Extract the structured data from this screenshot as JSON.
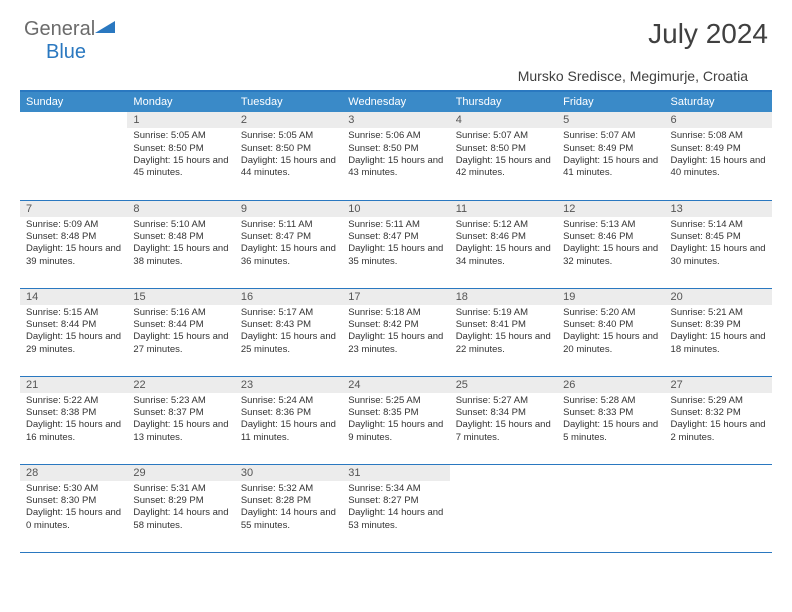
{
  "brand": {
    "part1": "General",
    "part2": "Blue"
  },
  "title": "July 2024",
  "location": "Mursko Sredisce, Megimurje, Croatia",
  "colors": {
    "header_bg": "#3a8ac8",
    "border": "#2a78c0",
    "daynum_bg": "#ececec",
    "text": "#333333"
  },
  "weekdays": [
    "Sunday",
    "Monday",
    "Tuesday",
    "Wednesday",
    "Thursday",
    "Friday",
    "Saturday"
  ],
  "weeks": [
    [
      null,
      {
        "n": "1",
        "sr": "5:05 AM",
        "ss": "8:50 PM",
        "dl": "15 hours and 45 minutes."
      },
      {
        "n": "2",
        "sr": "5:05 AM",
        "ss": "8:50 PM",
        "dl": "15 hours and 44 minutes."
      },
      {
        "n": "3",
        "sr": "5:06 AM",
        "ss": "8:50 PM",
        "dl": "15 hours and 43 minutes."
      },
      {
        "n": "4",
        "sr": "5:07 AM",
        "ss": "8:50 PM",
        "dl": "15 hours and 42 minutes."
      },
      {
        "n": "5",
        "sr": "5:07 AM",
        "ss": "8:49 PM",
        "dl": "15 hours and 41 minutes."
      },
      {
        "n": "6",
        "sr": "5:08 AM",
        "ss": "8:49 PM",
        "dl": "15 hours and 40 minutes."
      }
    ],
    [
      {
        "n": "7",
        "sr": "5:09 AM",
        "ss": "8:48 PM",
        "dl": "15 hours and 39 minutes."
      },
      {
        "n": "8",
        "sr": "5:10 AM",
        "ss": "8:48 PM",
        "dl": "15 hours and 38 minutes."
      },
      {
        "n": "9",
        "sr": "5:11 AM",
        "ss": "8:47 PM",
        "dl": "15 hours and 36 minutes."
      },
      {
        "n": "10",
        "sr": "5:11 AM",
        "ss": "8:47 PM",
        "dl": "15 hours and 35 minutes."
      },
      {
        "n": "11",
        "sr": "5:12 AM",
        "ss": "8:46 PM",
        "dl": "15 hours and 34 minutes."
      },
      {
        "n": "12",
        "sr": "5:13 AM",
        "ss": "8:46 PM",
        "dl": "15 hours and 32 minutes."
      },
      {
        "n": "13",
        "sr": "5:14 AM",
        "ss": "8:45 PM",
        "dl": "15 hours and 30 minutes."
      }
    ],
    [
      {
        "n": "14",
        "sr": "5:15 AM",
        "ss": "8:44 PM",
        "dl": "15 hours and 29 minutes."
      },
      {
        "n": "15",
        "sr": "5:16 AM",
        "ss": "8:44 PM",
        "dl": "15 hours and 27 minutes."
      },
      {
        "n": "16",
        "sr": "5:17 AM",
        "ss": "8:43 PM",
        "dl": "15 hours and 25 minutes."
      },
      {
        "n": "17",
        "sr": "5:18 AM",
        "ss": "8:42 PM",
        "dl": "15 hours and 23 minutes."
      },
      {
        "n": "18",
        "sr": "5:19 AM",
        "ss": "8:41 PM",
        "dl": "15 hours and 22 minutes."
      },
      {
        "n": "19",
        "sr": "5:20 AM",
        "ss": "8:40 PM",
        "dl": "15 hours and 20 minutes."
      },
      {
        "n": "20",
        "sr": "5:21 AM",
        "ss": "8:39 PM",
        "dl": "15 hours and 18 minutes."
      }
    ],
    [
      {
        "n": "21",
        "sr": "5:22 AM",
        "ss": "8:38 PM",
        "dl": "15 hours and 16 minutes."
      },
      {
        "n": "22",
        "sr": "5:23 AM",
        "ss": "8:37 PM",
        "dl": "15 hours and 13 minutes."
      },
      {
        "n": "23",
        "sr": "5:24 AM",
        "ss": "8:36 PM",
        "dl": "15 hours and 11 minutes."
      },
      {
        "n": "24",
        "sr": "5:25 AM",
        "ss": "8:35 PM",
        "dl": "15 hours and 9 minutes."
      },
      {
        "n": "25",
        "sr": "5:27 AM",
        "ss": "8:34 PM",
        "dl": "15 hours and 7 minutes."
      },
      {
        "n": "26",
        "sr": "5:28 AM",
        "ss": "8:33 PM",
        "dl": "15 hours and 5 minutes."
      },
      {
        "n": "27",
        "sr": "5:29 AM",
        "ss": "8:32 PM",
        "dl": "15 hours and 2 minutes."
      }
    ],
    [
      {
        "n": "28",
        "sr": "5:30 AM",
        "ss": "8:30 PM",
        "dl": "15 hours and 0 minutes."
      },
      {
        "n": "29",
        "sr": "5:31 AM",
        "ss": "8:29 PM",
        "dl": "14 hours and 58 minutes."
      },
      {
        "n": "30",
        "sr": "5:32 AM",
        "ss": "8:28 PM",
        "dl": "14 hours and 55 minutes."
      },
      {
        "n": "31",
        "sr": "5:34 AM",
        "ss": "8:27 PM",
        "dl": "14 hours and 53 minutes."
      },
      null,
      null,
      null
    ]
  ],
  "labels": {
    "sunrise": "Sunrise:",
    "sunset": "Sunset:",
    "daylight": "Daylight:"
  }
}
